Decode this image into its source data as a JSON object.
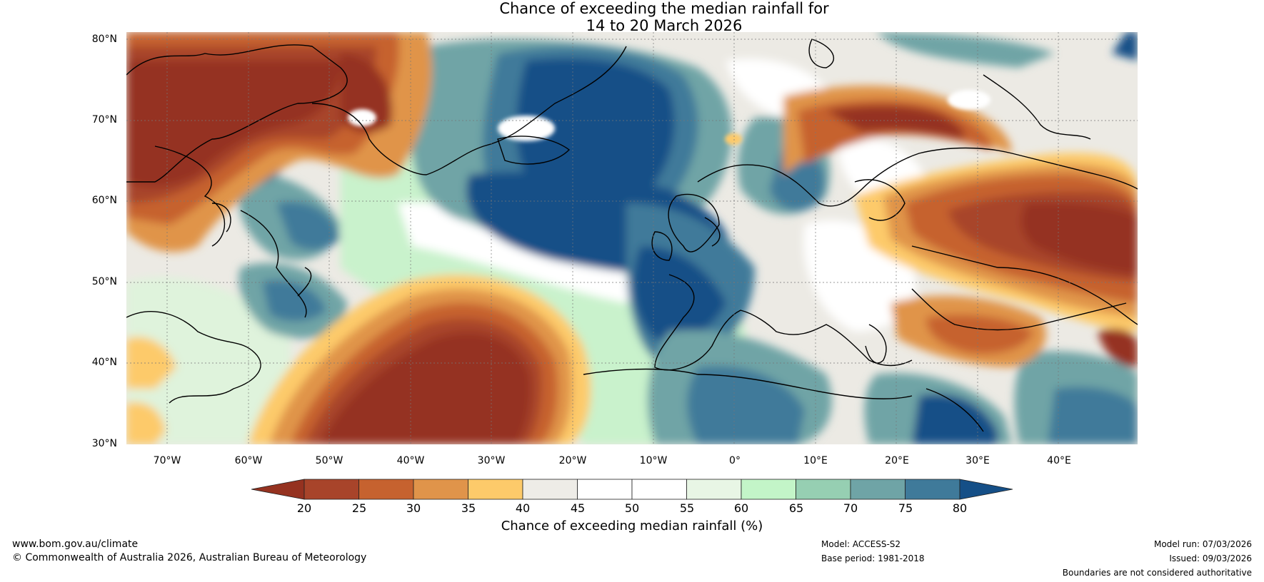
{
  "title": {
    "line1": "Chance of exceeding the median rainfall for",
    "line2": "14 to 20 March 2026"
  },
  "map": {
    "latitude_labels": [
      "80°N",
      "70°N",
      "60°N",
      "50°N",
      "40°N",
      "30°N"
    ],
    "longitude_labels": [
      "70°W",
      "60°W",
      "50°W",
      "40°W",
      "30°W",
      "20°W",
      "10°W",
      "0°",
      "10°E",
      "20°E",
      "30°E",
      "40°E"
    ]
  },
  "colorbar": {
    "ticks": [
      "20",
      "25",
      "30",
      "35",
      "40",
      "45",
      "50",
      "55",
      "60",
      "65",
      "70",
      "75",
      "80"
    ],
    "label": "Chance of exceeding median rainfall (%)",
    "colors": [
      "#953220",
      "#a8442a",
      "#c6622f",
      "#e0944a",
      "#fdca6a",
      "#eeece7",
      "#ffffff",
      "#ffffff",
      "#e8f6e5",
      "#c3f5c8",
      "#96cfb2",
      "#6fa4a6",
      "#3f7a9a",
      "#154f87"
    ]
  },
  "footer": {
    "website": "www.bom.gov.au/climate",
    "copyright": "© Commonwealth of Australia 2026, Australian Bureau of Meteorology",
    "model": "Model: ACCESS-S2",
    "base_period": "Base period: 1981-2018",
    "model_run": "Model run: 07/03/2026",
    "issued": "Issued: 09/03/2026",
    "disclaimer": "Boundaries are not considered authoritative"
  }
}
